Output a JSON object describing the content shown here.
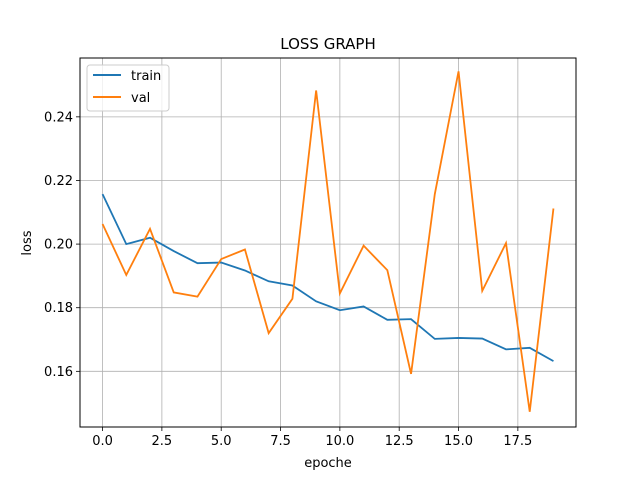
{
  "chart_data": {
    "type": "line",
    "title": "LOSS GRAPH",
    "xlabel": "epoche",
    "ylabel": "loss",
    "xlim": [
      -0.95,
      19.95
    ],
    "ylim": [
      0.1425,
      0.2585
    ],
    "grid": true,
    "legend_position": "top-left",
    "x": [
      0,
      1,
      2,
      3,
      4,
      5,
      6,
      7,
      8,
      9,
      10,
      11,
      12,
      13,
      14,
      15,
      16,
      17,
      18,
      19
    ],
    "xticks": [
      0,
      2.5,
      5,
      7.5,
      10,
      12.5,
      15,
      17.5
    ],
    "xtick_labels": [
      "0.0",
      "2.5",
      "5.0",
      "7.5",
      "10.0",
      "12.5",
      "15.0",
      "17.5"
    ],
    "yticks": [
      0.16,
      0.18,
      0.2,
      0.22,
      0.24
    ],
    "ytick_labels": [
      "0.16",
      "0.18",
      "0.20",
      "0.22",
      "0.24"
    ],
    "series": [
      {
        "name": "train",
        "color": "#1f77b4",
        "values": [
          0.2157,
          0.2,
          0.202,
          0.1978,
          0.194,
          0.1942,
          0.1917,
          0.1883,
          0.187,
          0.182,
          0.1792,
          0.1804,
          0.1762,
          0.1764,
          0.1702,
          0.1705,
          0.1703,
          0.1669,
          0.1674,
          0.1632
        ]
      },
      {
        "name": "val",
        "color": "#ff7f0e",
        "values": [
          0.2063,
          0.1903,
          0.2048,
          0.1848,
          0.1835,
          0.1953,
          0.1983,
          0.172,
          0.1828,
          0.2483,
          0.1845,
          0.1995,
          0.1918,
          0.1592,
          0.2157,
          0.2543,
          0.1853,
          0.2003,
          0.1473,
          0.2112
        ]
      }
    ]
  }
}
